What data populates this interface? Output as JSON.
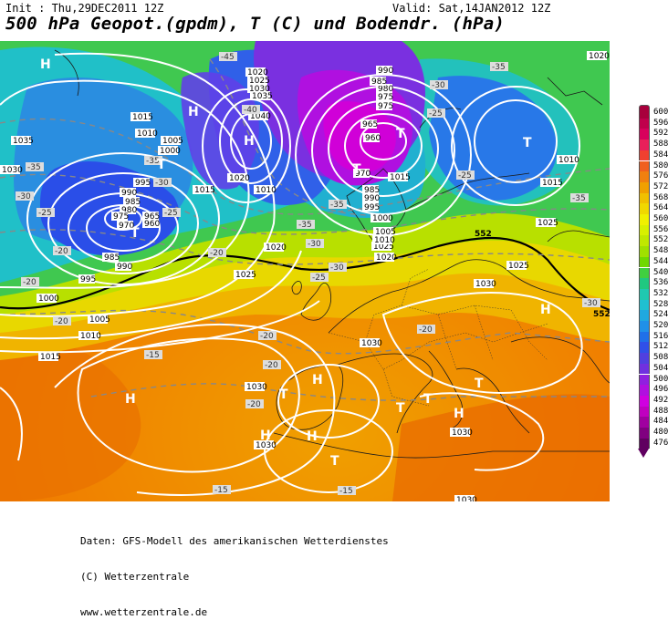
{
  "header": {
    "init": "Init : Thu,29DEC2011 12Z",
    "valid": "Valid: Sat,14JAN2012 12Z",
    "title": "500 hPa Geopot.(gpdm), T (C) und Bodendr. (hPa)"
  },
  "scale": {
    "values": [
      "600",
      "596",
      "592",
      "588",
      "584",
      "580",
      "576",
      "572",
      "568",
      "564",
      "560",
      "556",
      "552",
      "548",
      "544",
      "540",
      "536",
      "532",
      "528",
      "524",
      "520",
      "516",
      "512",
      "508",
      "504",
      "500",
      "496",
      "492",
      "488",
      "484",
      "480",
      "476"
    ],
    "colors": [
      "#a8003c",
      "#c0004c",
      "#d8005c",
      "#e8205a",
      "#f04030",
      "#f06020",
      "#f08010",
      "#f0a000",
      "#f0c000",
      "#f0d800",
      "#f0f000",
      "#d8f000",
      "#c0e800",
      "#a0e000",
      "#70d800",
      "#40d040",
      "#20c880",
      "#20c8b0",
      "#20c0d0",
      "#20a8e0",
      "#2090e8",
      "#2070e8",
      "#3050e8",
      "#5040e0",
      "#7030e0",
      "#9020e0",
      "#b010e0",
      "#d000e0",
      "#c000c0",
      "#a000a0",
      "#800080",
      "#600060"
    ]
  },
  "map": {
    "pressure_labels": [
      {
        "text": "1035"
      },
      {
        "text": "1030"
      },
      {
        "text": "1015"
      },
      {
        "text": "1010"
      },
      {
        "text": "1005"
      },
      {
        "text": "1000"
      },
      {
        "text": "995"
      },
      {
        "text": "990"
      },
      {
        "text": "985"
      },
      {
        "text": "980"
      },
      {
        "text": "975"
      },
      {
        "text": "970"
      },
      {
        "text": "965"
      },
      {
        "text": "960"
      },
      {
        "text": "985"
      },
      {
        "text": "990"
      },
      {
        "text": "995"
      },
      {
        "text": "1000"
      },
      {
        "text": "1005"
      },
      {
        "text": "1010"
      },
      {
        "text": "1015"
      },
      {
        "text": "1020"
      },
      {
        "text": "1025"
      },
      {
        "text": "1030"
      },
      {
        "text": "1020"
      },
      {
        "text": "1025"
      },
      {
        "text": "1030"
      },
      {
        "text": "1035"
      },
      {
        "text": "1040"
      },
      {
        "text": "1020"
      },
      {
        "text": "1010"
      },
      {
        "text": "1015"
      },
      {
        "text": "1020"
      },
      {
        "text": "1025"
      },
      {
        "text": "1030"
      },
      {
        "text": "1030"
      },
      {
        "text": "1030"
      },
      {
        "text": "1030"
      },
      {
        "text": "1030"
      },
      {
        "text": "1010"
      },
      {
        "text": "1015"
      },
      {
        "text": "1020"
      },
      {
        "text": "1025"
      },
      {
        "text": "1000"
      },
      {
        "text": "1005"
      },
      {
        "text": "1010"
      },
      {
        "text": "1015"
      },
      {
        "text": "1025"
      },
      {
        "text": "995"
      },
      {
        "text": "990"
      },
      {
        "text": "985"
      },
      {
        "text": "970"
      },
      {
        "text": "975"
      },
      {
        "text": "965"
      },
      {
        "text": "960"
      },
      {
        "text": "975"
      },
      {
        "text": "980"
      },
      {
        "text": "985"
      },
      {
        "text": "990"
      }
    ],
    "temp_labels": [
      "-45",
      "-40",
      "-35",
      "-35",
      "-30",
      "-30",
      "-25",
      "-25",
      "-20",
      "-20",
      "-15",
      "-15",
      "-35",
      "-30",
      "-25",
      "-20",
      "-35",
      "-30",
      "-25",
      "-20",
      "-35",
      "-30",
      "-25",
      "-35",
      "-30",
      "-20",
      "-20",
      "-15",
      "-20",
      "-20"
    ],
    "systems": [
      {
        "text": "H"
      },
      {
        "text": "H"
      },
      {
        "text": "H"
      },
      {
        "text": "T"
      },
      {
        "text": "T"
      },
      {
        "text": "T"
      },
      {
        "text": "T"
      },
      {
        "text": "H"
      },
      {
        "text": "H"
      },
      {
        "text": "T"
      },
      {
        "text": "T"
      },
      {
        "text": "T"
      },
      {
        "text": "H"
      },
      {
        "text": "T"
      },
      {
        "text": "H"
      },
      {
        "text": "T"
      },
      {
        "text": "H"
      },
      {
        "text": "H"
      },
      {
        "text": "T"
      }
    ],
    "highlight_labels": [
      "552",
      "552"
    ]
  },
  "footer": {
    "line1": "Daten: GFS-Modell des amerikanischen Wetterdienstes",
    "line2": "(C) Wetterzentrale",
    "line3": "www.wetterzentrale.de"
  }
}
